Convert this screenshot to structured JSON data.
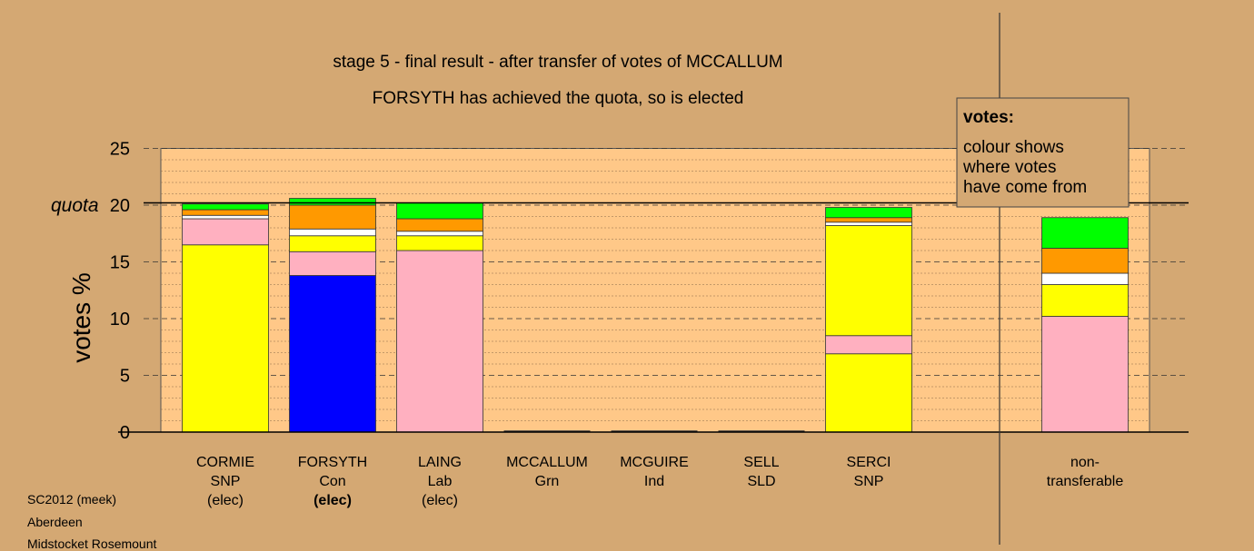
{
  "chart_data": {
    "type": "bar",
    "stacked": true,
    "title": "stage 5 - final result - after transfer of votes of MCCALLUM",
    "subtitle": "FORSYTH has achieved the quota, so is elected",
    "ylabel": "votes %",
    "ylim": [
      0,
      25
    ],
    "yticks": [
      0,
      5,
      10,
      15,
      20,
      25
    ],
    "minor_grid_step": 1,
    "quota": {
      "label": "quota",
      "value": 20.2
    },
    "legend": {
      "title": "votes:",
      "lines": [
        "colour shows",
        "where votes",
        "have come from"
      ],
      "position": "top-right"
    },
    "colors": {
      "SNP": "#ffff00",
      "Con": "#0000ff",
      "Lab": "#ffb0c0",
      "Grn": "#00ff00",
      "Ind": "#ff9900",
      "SLD": "#ffffff"
    },
    "candidates": [
      {
        "name": "CORMIE",
        "party": "SNP",
        "status": "(elec)",
        "status_bold": false,
        "segments": [
          {
            "from": "SNP",
            "value": 16.5
          },
          {
            "from": "Lab",
            "value": 2.3
          },
          {
            "from": "SLD",
            "value": 0.3
          },
          {
            "from": "Ind",
            "value": 0.5
          },
          {
            "from": "Grn",
            "value": 0.5
          }
        ]
      },
      {
        "name": "FORSYTH",
        "party": "Con",
        "status": "(elec)",
        "status_bold": true,
        "segments": [
          {
            "from": "Con",
            "value": 13.8
          },
          {
            "from": "Lab",
            "value": 2.1
          },
          {
            "from": "SNP",
            "value": 1.4
          },
          {
            "from": "SLD",
            "value": 0.6
          },
          {
            "from": "Ind",
            "value": 2.1
          },
          {
            "from": "Grn",
            "value": 0.6
          }
        ]
      },
      {
        "name": "LAING",
        "party": "Lab",
        "status": "(elec)",
        "status_bold": false,
        "segments": [
          {
            "from": "Lab",
            "value": 16.0
          },
          {
            "from": "SNP",
            "value": 1.3
          },
          {
            "from": "SLD",
            "value": 0.4
          },
          {
            "from": "Ind",
            "value": 1.1
          },
          {
            "from": "Grn",
            "value": 1.4
          }
        ]
      },
      {
        "name": "MCCALLUM",
        "party": "Grn",
        "status": "",
        "status_bold": false,
        "segments": []
      },
      {
        "name": "MCGUIRE",
        "party": "Ind",
        "status": "",
        "status_bold": false,
        "segments": []
      },
      {
        "name": "SELL",
        "party": "SLD",
        "status": "",
        "status_bold": false,
        "segments": []
      },
      {
        "name": "SERCI",
        "party": "SNP",
        "status": "",
        "status_bold": false,
        "segments": [
          {
            "from": "SNP",
            "value": 6.9
          },
          {
            "from": "Lab",
            "value": 1.6
          },
          {
            "from": "SNP",
            "value": 9.7
          },
          {
            "from": "SLD",
            "value": 0.3
          },
          {
            "from": "Ind",
            "value": 0.4
          },
          {
            "from": "Grn",
            "value": 0.9
          }
        ]
      }
    ],
    "non_transferable": {
      "label_lines": [
        "non-",
        "transferable"
      ],
      "segments": [
        {
          "from": "Lab",
          "value": 10.2
        },
        {
          "from": "SNP",
          "value": 2.8
        },
        {
          "from": "SLD",
          "value": 1.0
        },
        {
          "from": "Ind",
          "value": 2.2
        },
        {
          "from": "Grn",
          "value": 2.7
        }
      ]
    }
  },
  "footer": {
    "line1": "SC2012 (meek)",
    "line2": "Aberdeen",
    "line3": "Midstocket Rosemount"
  }
}
